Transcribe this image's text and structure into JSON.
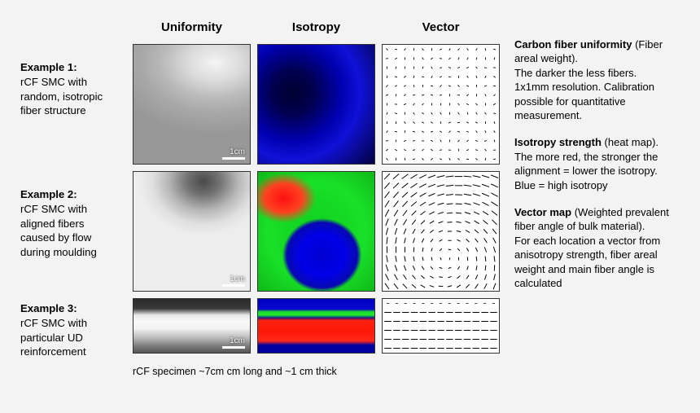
{
  "columns": {
    "uniformity": "Uniformity",
    "isotropy": "Isotropy",
    "vector": "Vector"
  },
  "rows": {
    "r1": {
      "title": "Example 1:",
      "desc": "rCF SMC with random, isotropic fiber structure"
    },
    "r2": {
      "title": "Example 2:",
      "desc": "rCF SMC with aligned fibers caused by flow during moulding"
    },
    "r3": {
      "title": "Example 3:",
      "desc": "rCF SMC with particular UD reinforcement"
    }
  },
  "scalebar": "1cm",
  "caption": "rCF specimen ~7cm cm long and ~1 cm thick",
  "legend": {
    "uniformity": {
      "title": "Carbon fiber uniformity",
      "sub": "(Fiber areal weight).",
      "body": "The darker the less fibers. 1x1mm resolution. Calibration possible for quantitative measurement."
    },
    "isotropy": {
      "title": "Isotropy strength",
      "sub": "(heat map).",
      "body": "The more red, the stronger the alignment = lower the isotropy. Blue = high isotropy"
    },
    "vector": {
      "title": "Vector map",
      "sub": "(Weighted prevalent fiber angle of bulk material).",
      "body": "For each location a vector from anisotropy strength, fiber areal weight and main fiber angle is calculated"
    }
  },
  "tiles": {
    "uniformity1": "radial-gradient(ellipse 90% 60% at 70% 15%, #f4f4f4 0%, #dcdcdc 25%, #bababa 50%, #a8a8a8 70%, #989898 100%)",
    "uniformity2": "radial-gradient(ellipse 55% 45% at 60% 8%, #4a4a4a 0%, #707070 25%, #b8b8b8 55%, #e0e0e0 80%, #ededed 100%)",
    "uniformity3": "linear-gradient(to bottom, #2a2a2a 0%, #3a3a3a 18%, #e8e8e8 30%, #fafafa 42%, #f2f2f2 55%, #bcbcbc 72%, #7a7a7a 88%, #555 100%)",
    "isotropy1": "radial-gradient(circle at 30% 40%, #000030 0%, #000050 20%, #0000b0 45%, #1010d8 62%, #0a0a90 80%, #000040 100%)",
    "isotropy2_layers": [
      "radial-gradient(ellipse 55% 50% at 55% 70%, #0000d0 0%, #0000e8 35%, #0808b0 55%, rgba(0,0,0,0) 62%)",
      "radial-gradient(ellipse 40% 30% at 22% 22%, #ff1010 0%, #ff4020 40%, rgba(255,64,32,0) 70%)",
      "radial-gradient(circle at 50% 50%, #10d020 0%, #18e028 60%, #10b818 100%)"
    ],
    "isotropy3_layers": [
      "linear-gradient(to bottom, #0000c0 0%, #0808d0 18%, rgba(0,0,0,0) 24%)",
      "linear-gradient(to bottom, rgba(0,0,0,0) 0%, rgba(0,0,0,0) 18%, #18d828 22%, #20e830 30%, rgba(0,0,0,0) 36%)",
      "linear-gradient(to bottom, rgba(0,0,0,0) 0%, rgba(0,0,0,0) 34%, #ff2010 40%, #ff1808 60%, #ff2818 78%, rgba(0,0,0,0) 86%)",
      "linear-gradient(to bottom, #0000a0 0%, #0000a0 100%)"
    ]
  },
  "vectors": {
    "grid_n": 13,
    "row3_n": 6,
    "dot_len": 1.2,
    "flow_max_len": 9,
    "flow_min_len": 2,
    "ud_len": 8,
    "stroke": "#000",
    "stroke_dot": 0.9,
    "stroke_line": 1.0
  }
}
